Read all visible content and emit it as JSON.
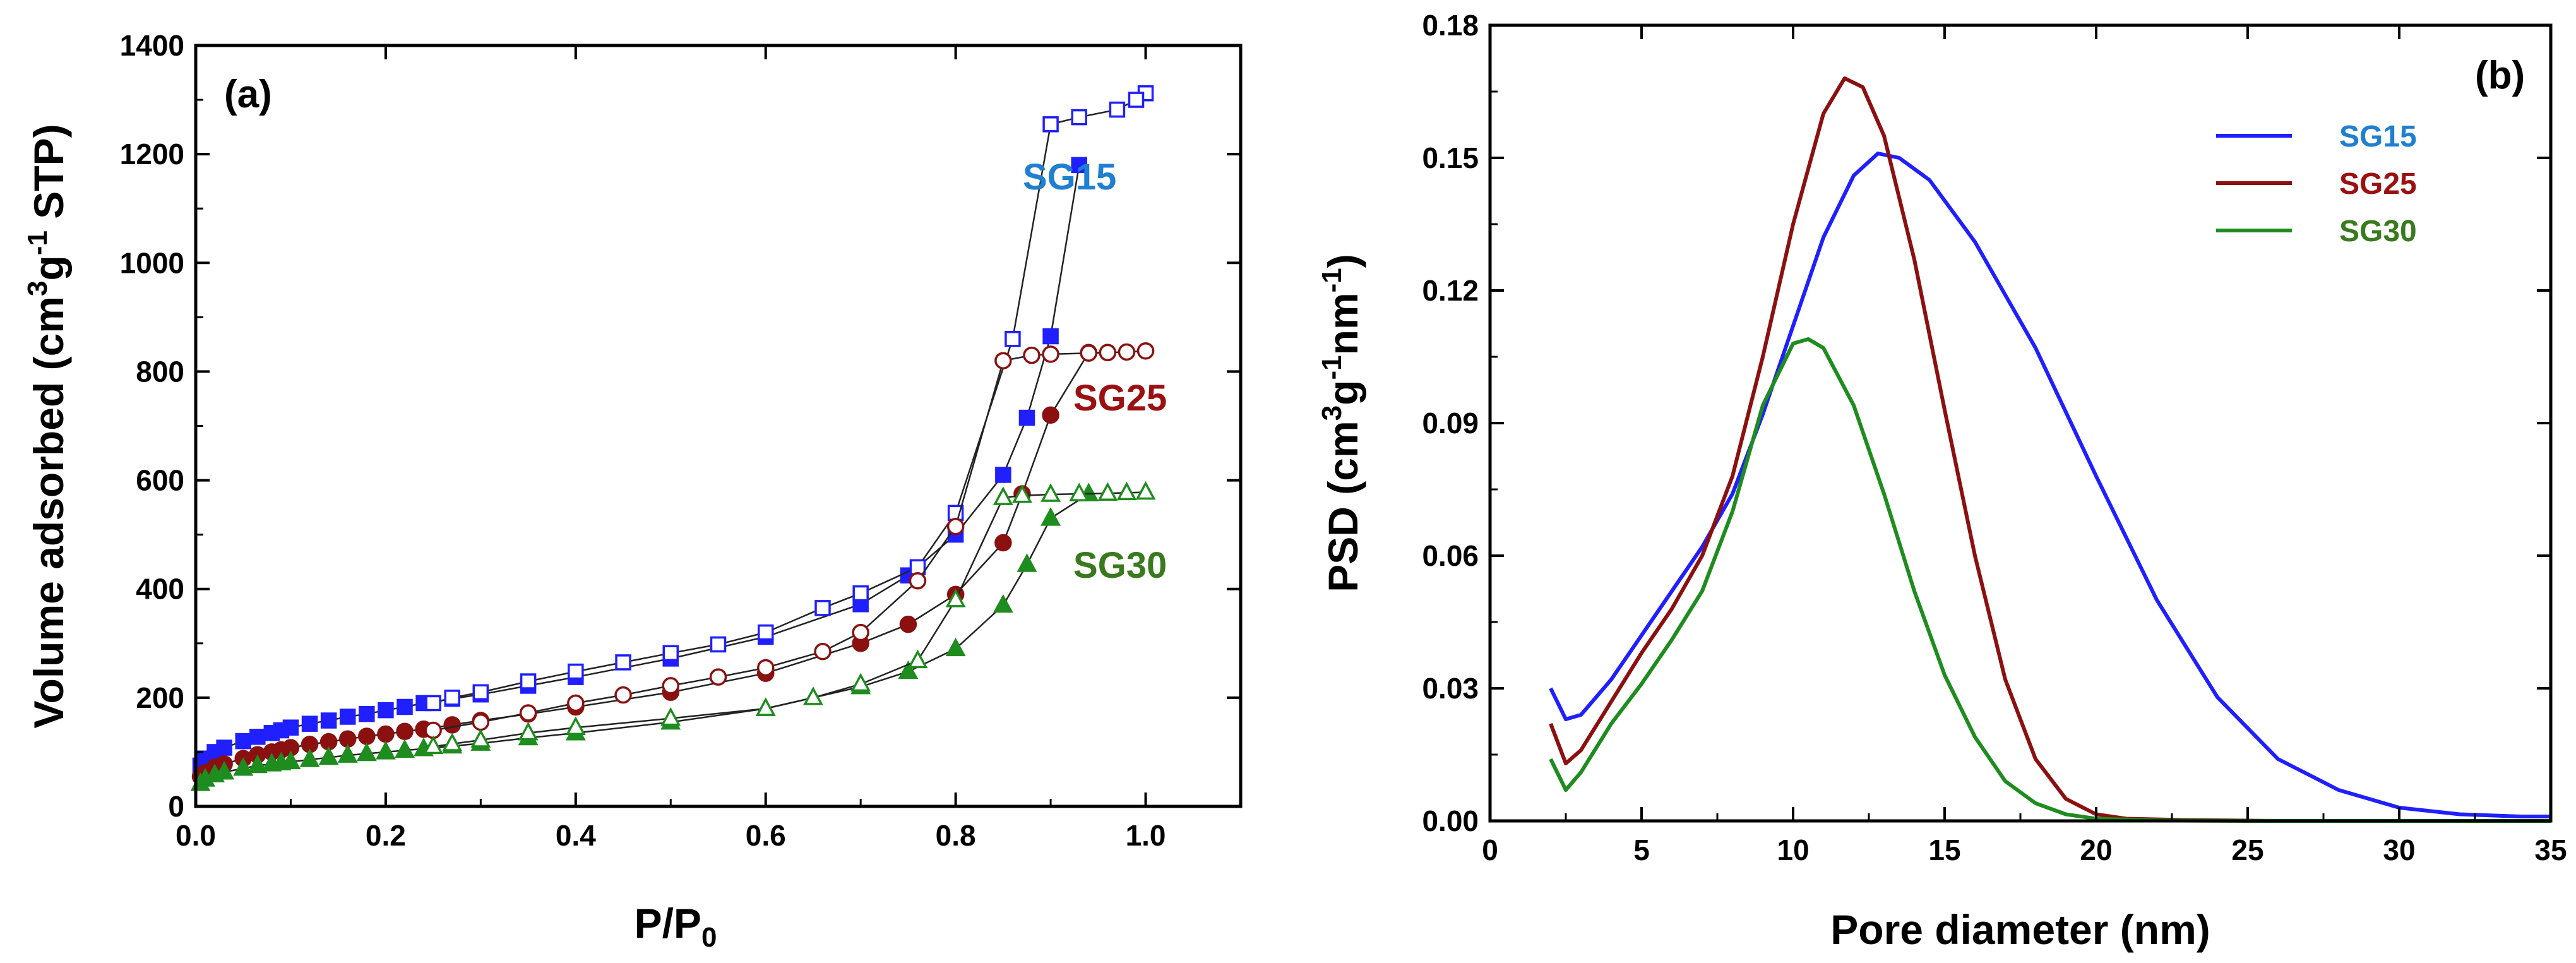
{
  "colors": {
    "sg15": "#1f1fff",
    "sg25": "#8b1010",
    "sg30": "#1e8c1e",
    "sg15_label": "#1f7fd0",
    "sg25_label": "#9b1111",
    "sg30_label": "#3a7a1e"
  },
  "chart_data": [
    {
      "panel": "(a)",
      "type": "line",
      "title": "",
      "xlabel": "P/P",
      "xlabel_sub": "0",
      "ylabel": "Volume adsorbed (cm",
      "ylabel_sup1": "3",
      "ylabel_mid": "g",
      "ylabel_sup2": "-1",
      "ylabel_end": " STP)",
      "xlim": [
        0.0,
        1.1
      ],
      "ylim": [
        0,
        1400
      ],
      "xticks": [
        "0.0",
        "0.2",
        "0.4",
        "0.6",
        "0.8",
        "1.0"
      ],
      "yticks": [
        "0",
        "200",
        "400",
        "600",
        "800",
        "1000",
        "1200",
        "1400"
      ],
      "series": [
        {
          "name": "SG15",
          "color_key": "sg15",
          "adsorption": {
            "x": [
              0.005,
              0.01,
              0.02,
              0.03,
              0.05,
              0.065,
              0.08,
              0.09,
              0.1,
              0.12,
              0.14,
              0.16,
              0.18,
              0.2,
              0.22,
              0.24,
              0.27,
              0.3,
              0.35,
              0.4,
              0.5,
              0.6,
              0.7,
              0.75,
              0.8,
              0.85,
              0.875,
              0.9,
              0.93
            ],
            "y": [
              75,
              88,
              100,
              108,
              120,
              128,
              135,
              140,
              145,
              152,
              158,
              165,
              170,
              177,
              183,
              190,
              198,
              206,
              222,
              238,
              272,
              312,
              372,
              425,
              500,
              610,
              715,
              865,
              1180
            ]
          },
          "desorption": {
            "x": [
              1.0,
              0.99,
              0.97,
              0.93,
              0.9,
              0.86,
              0.8,
              0.76,
              0.7,
              0.66,
              0.6,
              0.55,
              0.5,
              0.45,
              0.4,
              0.35,
              0.3,
              0.27,
              0.25
            ],
            "y": [
              1312,
              1300,
              1282,
              1268,
              1255,
              860,
              540,
              440,
              392,
              365,
              320,
              298,
              282,
              265,
              248,
              230,
              210,
              200,
              190
            ]
          }
        },
        {
          "name": "SG25",
          "color_key": "sg25",
          "adsorption": {
            "x": [
              0.005,
              0.01,
              0.02,
              0.03,
              0.05,
              0.065,
              0.08,
              0.09,
              0.1,
              0.12,
              0.14,
              0.16,
              0.18,
              0.2,
              0.22,
              0.24,
              0.27,
              0.3,
              0.35,
              0.4,
              0.5,
              0.6,
              0.7,
              0.75,
              0.8,
              0.85,
              0.87,
              0.9,
              0.94,
              0.96
            ],
            "y": [
              55,
              62,
              72,
              78,
              88,
              95,
              100,
              104,
              108,
              114,
              119,
              124,
              129,
              133,
              138,
              142,
              150,
              158,
              170,
              183,
              210,
              245,
              300,
              335,
              390,
              485,
              575,
              720,
              835,
              835
            ]
          },
          "desorption": {
            "x": [
              1.0,
              0.98,
              0.96,
              0.94,
              0.9,
              0.88,
              0.85,
              0.8,
              0.76,
              0.7,
              0.66,
              0.6,
              0.55,
              0.5,
              0.45,
              0.4,
              0.35,
              0.3,
              0.25
            ],
            "y": [
              838,
              836,
              835,
              834,
              832,
              830,
              820,
              515,
              415,
              320,
              285,
              255,
              238,
              222,
              205,
              190,
              172,
              155,
              140
            ]
          }
        },
        {
          "name": "SG30",
          "color_key": "sg30",
          "adsorption": {
            "x": [
              0.005,
              0.01,
              0.02,
              0.03,
              0.05,
              0.065,
              0.08,
              0.09,
              0.1,
              0.12,
              0.14,
              0.16,
              0.18,
              0.2,
              0.22,
              0.24,
              0.27,
              0.3,
              0.35,
              0.4,
              0.5,
              0.6,
              0.7,
              0.75,
              0.8,
              0.85,
              0.875,
              0.9,
              0.94
            ],
            "y": [
              42,
              50,
              58,
              63,
              70,
              75,
              78,
              80,
              82,
              86,
              90,
              94,
              97,
              100,
              103,
              106,
              111,
              116,
              126,
              135,
              155,
              180,
              220,
              248,
              290,
              370,
              445,
              530,
              575
            ]
          },
          "desorption": {
            "x": [
              1.0,
              0.98,
              0.96,
              0.93,
              0.9,
              0.87,
              0.85,
              0.8,
              0.76,
              0.7,
              0.65,
              0.6,
              0.5,
              0.4,
              0.35,
              0.3,
              0.27,
              0.25
            ],
            "y": [
              578,
              577,
              576,
              575,
              574,
              572,
              568,
              380,
              268,
              225,
              200,
              180,
              162,
              145,
              135,
              122,
              115,
              110
            ]
          }
        }
      ],
      "series_labels": [
        {
          "text": "SG15",
          "color_key": "sg15_label"
        },
        {
          "text": "SG25",
          "color_key": "sg25_label"
        },
        {
          "text": "SG30",
          "color_key": "sg30_label"
        }
      ]
    },
    {
      "panel": "(b)",
      "type": "line",
      "title": "",
      "xlabel": "Pore diameter (nm)",
      "ylabel": "PSD (cm",
      "ylabel_sup1": "3",
      "ylabel_mid": "g",
      "ylabel_sup2": "-1",
      "ylabel_mid2": "nm",
      "ylabel_sup3": "-1",
      "ylabel_end": ")",
      "xlim": [
        0,
        35
      ],
      "ylim": [
        0.0,
        0.18
      ],
      "xticks": [
        "0",
        "5",
        "10",
        "15",
        "20",
        "25",
        "30",
        "35"
      ],
      "yticks": [
        "0.00",
        "0.03",
        "0.06",
        "0.09",
        "0.12",
        "0.15",
        "0.18"
      ],
      "legend": [
        "SG15",
        "SG25",
        "SG30"
      ],
      "legend_position": "top-right",
      "series": [
        {
          "name": "SG15",
          "color_key": "sg15",
          "x": [
            2.0,
            2.5,
            3.0,
            4.0,
            5.0,
            6.0,
            7.0,
            8.0,
            9.0,
            10.0,
            11.0,
            12.0,
            12.8,
            13.5,
            14.5,
            16.0,
            18.0,
            20.0,
            22.0,
            24.0,
            26.0,
            28.0,
            30.0,
            32.0,
            34.0,
            35.0
          ],
          "y": [
            0.03,
            0.023,
            0.024,
            0.032,
            0.042,
            0.052,
            0.062,
            0.074,
            0.092,
            0.112,
            0.132,
            0.146,
            0.151,
            0.15,
            0.145,
            0.131,
            0.107,
            0.078,
            0.05,
            0.028,
            0.014,
            0.007,
            0.003,
            0.0015,
            0.001,
            0.001
          ]
        },
        {
          "name": "SG25",
          "color_key": "sg25",
          "x": [
            2.0,
            2.5,
            3.0,
            4.0,
            5.0,
            6.0,
            7.0,
            8.0,
            9.0,
            10.0,
            11.0,
            11.7,
            12.3,
            13.0,
            14.0,
            15.0,
            16.0,
            17.0,
            18.0,
            19.0,
            20.0,
            21.0,
            23.0,
            26.0,
            30.0,
            35.0
          ],
          "y": [
            0.022,
            0.013,
            0.016,
            0.027,
            0.038,
            0.048,
            0.06,
            0.078,
            0.105,
            0.135,
            0.16,
            0.168,
            0.166,
            0.155,
            0.127,
            0.093,
            0.06,
            0.032,
            0.014,
            0.005,
            0.0015,
            0.0005,
            0.0002,
            0.0,
            0.0,
            0.0
          ]
        },
        {
          "name": "SG30",
          "color_key": "sg30",
          "x": [
            2.0,
            2.5,
            3.0,
            4.0,
            5.0,
            6.0,
            7.0,
            8.0,
            9.0,
            10.0,
            10.5,
            11.0,
            12.0,
            13.0,
            14.0,
            15.0,
            16.0,
            17.0,
            18.0,
            19.0,
            20.0,
            22.0,
            25.0,
            30.0,
            35.0
          ],
          "y": [
            0.014,
            0.007,
            0.011,
            0.022,
            0.031,
            0.041,
            0.052,
            0.07,
            0.094,
            0.108,
            0.109,
            0.107,
            0.094,
            0.074,
            0.052,
            0.033,
            0.019,
            0.009,
            0.004,
            0.0015,
            0.0005,
            0.0001,
            0.0,
            0.0,
            0.0
          ]
        }
      ]
    }
  ]
}
